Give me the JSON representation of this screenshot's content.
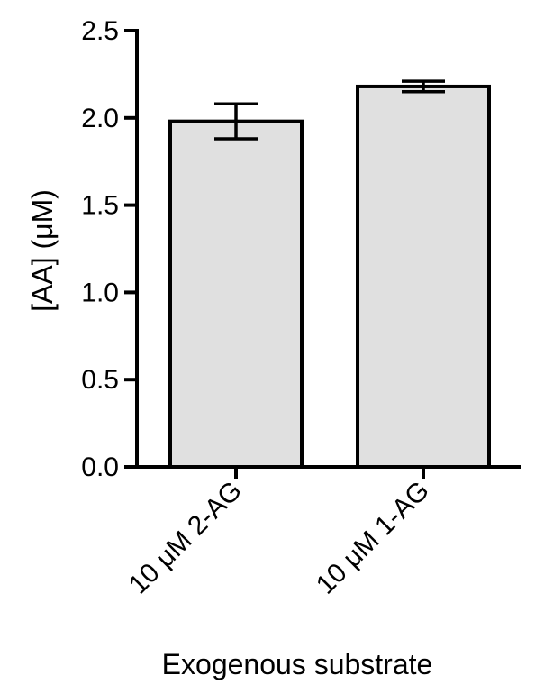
{
  "chart_data": {
    "type": "bar",
    "title": "",
    "xlabel": "Exogenous substrate",
    "ylabel": "[AA] (μM)",
    "categories": [
      "10 μM 2-AG",
      "10 μM 1-AG"
    ],
    "series": [
      {
        "values": [
          1.98,
          2.18
        ],
        "errors": [
          0.1,
          0.03
        ]
      }
    ],
    "ylim": [
      0,
      2.5
    ],
    "yticks": [
      0.0,
      0.5,
      1.0,
      1.5,
      2.0,
      2.5
    ],
    "ytick_labels": [
      "0.0",
      "0.5",
      "1.0",
      "1.5",
      "2.0",
      "2.5"
    ],
    "grid": false,
    "legend": "none",
    "bar_color": "#e0e0e0",
    "edge_color": "#000000"
  }
}
